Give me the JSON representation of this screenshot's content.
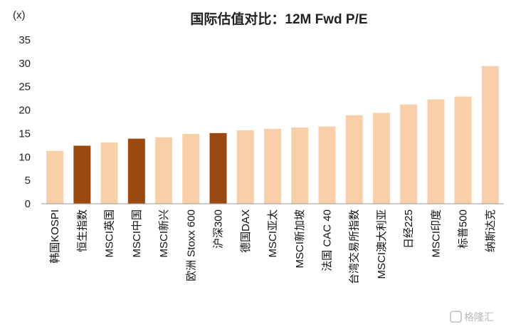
{
  "chart_data": {
    "type": "bar",
    "title": "国际估值对比：12M Fwd P/E",
    "unit_label": "(x)",
    "categories": [
      "韩国KOSPI",
      "恒生指数",
      "MSCI英国",
      "MSCI中国",
      "MSCI新兴",
      "欧洲 Stoxx 600",
      "沪深300",
      "德国DAX",
      "MSCI亚太",
      "MSCI新加坡",
      "法国 CAC 40",
      "台湾交易所指数",
      "MSCI澳大利亚",
      "日经225",
      "MSCI印度",
      "标普500",
      "纳斯达克"
    ],
    "values": [
      11.3,
      12.4,
      13.1,
      13.9,
      14.2,
      14.9,
      15.1,
      15.7,
      16.0,
      16.3,
      16.5,
      18.9,
      19.4,
      21.2,
      22.3,
      22.9,
      29.4
    ],
    "highlight": [
      false,
      true,
      false,
      true,
      false,
      false,
      true,
      false,
      false,
      false,
      false,
      false,
      false,
      false,
      false,
      false,
      false
    ],
    "ylim": [
      0,
      35
    ],
    "yticks": [
      0,
      5,
      10,
      15,
      20,
      25,
      30,
      35
    ],
    "grid": false,
    "colors": {
      "default": "#F9CFAA",
      "highlight": "#9A4A10",
      "axis": "#999999"
    }
  },
  "watermark": "格隆汇"
}
